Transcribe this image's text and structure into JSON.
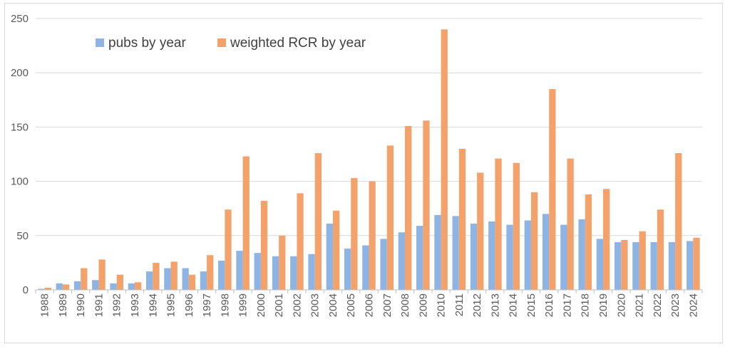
{
  "chart_data": {
    "type": "bar",
    "title": "",
    "xlabel": "",
    "ylabel": "",
    "ylim": [
      0,
      250
    ],
    "yticks": [
      0,
      50,
      100,
      150,
      200,
      250
    ],
    "grid": true,
    "legend_position": "top-left",
    "categories": [
      "1988",
      "1989",
      "1990",
      "1991",
      "1992",
      "1993",
      "1994",
      "1995",
      "1996",
      "1997",
      "1998",
      "1999",
      "2000",
      "2001",
      "2002",
      "2003",
      "2004",
      "2005",
      "2006",
      "2007",
      "2008",
      "2009",
      "2010",
      "2011",
      "2012",
      "2013",
      "2014",
      "2015",
      "2016",
      "2017",
      "2018",
      "2019",
      "2020",
      "2021",
      "2022",
      "2023",
      "2024"
    ],
    "series": [
      {
        "name": "pubs by year",
        "color": "#8eb4e3",
        "values": [
          1,
          6,
          8,
          9,
          6,
          6,
          17,
          20,
          20,
          17,
          27,
          36,
          34,
          31,
          31,
          33,
          61,
          38,
          41,
          47,
          53,
          59,
          69,
          68,
          61,
          63,
          60,
          64,
          70,
          60,
          65,
          47,
          44,
          44,
          44,
          44,
          45
        ]
      },
      {
        "name": "weighted RCR by year",
        "color": "#f4a26c",
        "values": [
          2,
          5,
          20,
          28,
          14,
          7,
          25,
          26,
          14,
          32,
          74,
          123,
          82,
          50,
          89,
          126,
          73,
          103,
          100,
          133,
          151,
          156,
          240,
          130,
          108,
          121,
          117,
          90,
          185,
          121,
          88,
          93,
          46,
          54,
          74,
          126,
          48
        ]
      }
    ]
  }
}
